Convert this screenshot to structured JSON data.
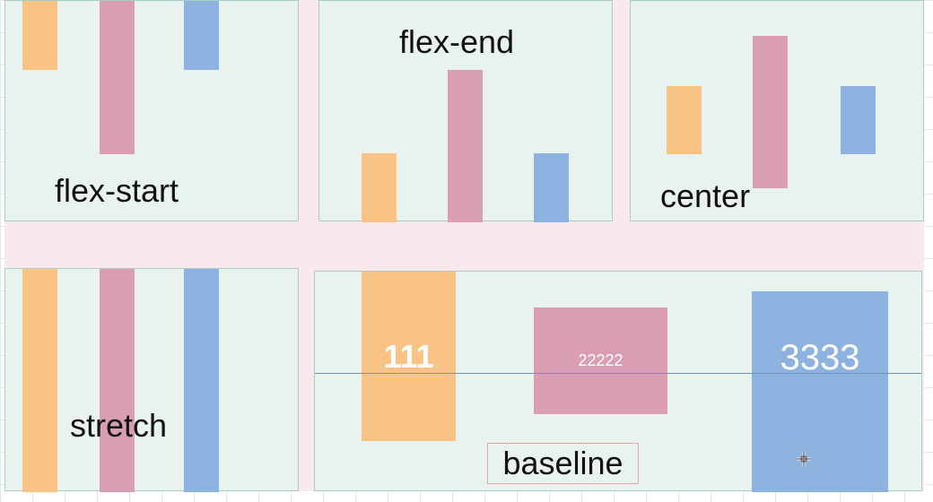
{
  "panels": {
    "flex_start": {
      "label": "flex-start"
    },
    "flex_end": {
      "label": "flex-end"
    },
    "center": {
      "label": "center"
    },
    "stretch": {
      "label": "stretch"
    },
    "baseline": {
      "label": "baseline",
      "item_1": "111",
      "item_2": "22222",
      "item_3": "3333"
    }
  },
  "colors": {
    "orange": "#f8c384",
    "pink": "#d99eb0",
    "blue": "#8db2e0",
    "panel_bg": "#e8f2ef",
    "container_bg": "#f9e8ee"
  }
}
